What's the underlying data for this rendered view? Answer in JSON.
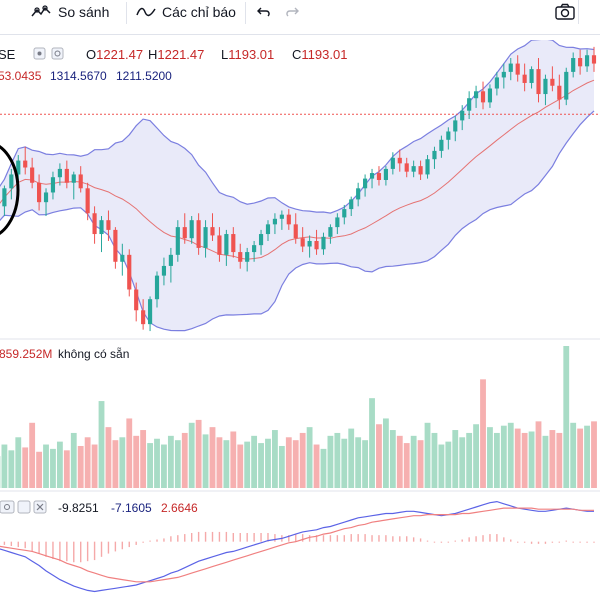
{
  "toolbar": {
    "compare_label": "So sánh",
    "indicators_label": "Các chỉ báo"
  },
  "legend": {
    "symbol_fragment": "SE",
    "o_label": "O",
    "o_value": "1221.47",
    "h_label": "H",
    "h_value": "1221.47",
    "l_label": "L",
    "l_value": "1193.01",
    "c_label": "C",
    "c_value": "1193.01",
    "bb_values": [
      "53.0435",
      "1314.5670",
      "1211.5200"
    ],
    "volume_value": "859.252M",
    "volume_na": "không có sẵn",
    "macd_values": [
      "-9.8251",
      "-7.1605",
      "2.6646"
    ]
  },
  "colors": {
    "up": "#26a69a",
    "down": "#ef5350",
    "bb_band": "#7b7fe0",
    "bb_fill": "#e4e5f7",
    "bb_basis": "#e57373",
    "macd_line": "#5b63e6",
    "signal_line": "#f08080",
    "hist": "#f5a9a9"
  },
  "chart_data": {
    "type": "candlestick",
    "price_ylim": [
      1060,
      1275
    ],
    "reference_price": 1221.47,
    "ohlc": [
      {
        "o": 1152,
        "h": 1162,
        "l": 1142,
        "c": 1155
      },
      {
        "o": 1155,
        "h": 1170,
        "l": 1148,
        "c": 1168
      },
      {
        "o": 1168,
        "h": 1182,
        "l": 1160,
        "c": 1178
      },
      {
        "o": 1178,
        "h": 1192,
        "l": 1172,
        "c": 1188
      },
      {
        "o": 1188,
        "h": 1198,
        "l": 1178,
        "c": 1183
      },
      {
        "o": 1183,
        "h": 1190,
        "l": 1168,
        "c": 1172
      },
      {
        "o": 1172,
        "h": 1178,
        "l": 1152,
        "c": 1158
      },
      {
        "o": 1158,
        "h": 1168,
        "l": 1148,
        "c": 1165
      },
      {
        "o": 1165,
        "h": 1180,
        "l": 1160,
        "c": 1176
      },
      {
        "o": 1176,
        "h": 1186,
        "l": 1170,
        "c": 1182
      },
      {
        "o": 1182,
        "h": 1188,
        "l": 1168,
        "c": 1172
      },
      {
        "o": 1172,
        "h": 1180,
        "l": 1160,
        "c": 1178
      },
      {
        "o": 1178,
        "h": 1184,
        "l": 1165,
        "c": 1168
      },
      {
        "o": 1168,
        "h": 1172,
        "l": 1145,
        "c": 1150
      },
      {
        "o": 1150,
        "h": 1155,
        "l": 1128,
        "c": 1135
      },
      {
        "o": 1135,
        "h": 1148,
        "l": 1122,
        "c": 1145
      },
      {
        "o": 1145,
        "h": 1152,
        "l": 1130,
        "c": 1138
      },
      {
        "o": 1138,
        "h": 1140,
        "l": 1110,
        "c": 1115
      },
      {
        "o": 1115,
        "h": 1128,
        "l": 1105,
        "c": 1120
      },
      {
        "o": 1120,
        "h": 1124,
        "l": 1090,
        "c": 1095
      },
      {
        "o": 1095,
        "h": 1100,
        "l": 1072,
        "c": 1080
      },
      {
        "o": 1080,
        "h": 1088,
        "l": 1066,
        "c": 1070
      },
      {
        "o": 1070,
        "h": 1090,
        "l": 1065,
        "c": 1088
      },
      {
        "o": 1088,
        "h": 1108,
        "l": 1082,
        "c": 1105
      },
      {
        "o": 1105,
        "h": 1118,
        "l": 1098,
        "c": 1112
      },
      {
        "o": 1112,
        "h": 1125,
        "l": 1100,
        "c": 1120
      },
      {
        "o": 1120,
        "h": 1145,
        "l": 1115,
        "c": 1140
      },
      {
        "o": 1140,
        "h": 1150,
        "l": 1128,
        "c": 1132
      },
      {
        "o": 1132,
        "h": 1148,
        "l": 1128,
        "c": 1145
      },
      {
        "o": 1145,
        "h": 1150,
        "l": 1120,
        "c": 1125
      },
      {
        "o": 1125,
        "h": 1145,
        "l": 1118,
        "c": 1140
      },
      {
        "o": 1140,
        "h": 1150,
        "l": 1130,
        "c": 1134
      },
      {
        "o": 1134,
        "h": 1140,
        "l": 1115,
        "c": 1120
      },
      {
        "o": 1120,
        "h": 1138,
        "l": 1112,
        "c": 1135
      },
      {
        "o": 1135,
        "h": 1140,
        "l": 1118,
        "c": 1122
      },
      {
        "o": 1122,
        "h": 1128,
        "l": 1110,
        "c": 1115
      },
      {
        "o": 1115,
        "h": 1125,
        "l": 1108,
        "c": 1122
      },
      {
        "o": 1122,
        "h": 1130,
        "l": 1115,
        "c": 1127
      },
      {
        "o": 1127,
        "h": 1138,
        "l": 1120,
        "c": 1135
      },
      {
        "o": 1135,
        "h": 1145,
        "l": 1130,
        "c": 1142
      },
      {
        "o": 1142,
        "h": 1150,
        "l": 1135,
        "c": 1146
      },
      {
        "o": 1146,
        "h": 1152,
        "l": 1138,
        "c": 1149
      },
      {
        "o": 1149,
        "h": 1153,
        "l": 1138,
        "c": 1142
      },
      {
        "o": 1142,
        "h": 1150,
        "l": 1128,
        "c": 1132
      },
      {
        "o": 1132,
        "h": 1140,
        "l": 1122,
        "c": 1126
      },
      {
        "o": 1126,
        "h": 1134,
        "l": 1118,
        "c": 1130
      },
      {
        "o": 1130,
        "h": 1138,
        "l": 1120,
        "c": 1124
      },
      {
        "o": 1124,
        "h": 1136,
        "l": 1120,
        "c": 1133
      },
      {
        "o": 1133,
        "h": 1142,
        "l": 1128,
        "c": 1140
      },
      {
        "o": 1140,
        "h": 1150,
        "l": 1135,
        "c": 1147
      },
      {
        "o": 1147,
        "h": 1156,
        "l": 1142,
        "c": 1153
      },
      {
        "o": 1153,
        "h": 1162,
        "l": 1148,
        "c": 1160
      },
      {
        "o": 1160,
        "h": 1172,
        "l": 1155,
        "c": 1168
      },
      {
        "o": 1168,
        "h": 1178,
        "l": 1162,
        "c": 1175
      },
      {
        "o": 1175,
        "h": 1182,
        "l": 1168,
        "c": 1179
      },
      {
        "o": 1179,
        "h": 1184,
        "l": 1170,
        "c": 1174
      },
      {
        "o": 1174,
        "h": 1184,
        "l": 1170,
        "c": 1182
      },
      {
        "o": 1182,
        "h": 1194,
        "l": 1178,
        "c": 1190
      },
      {
        "o": 1190,
        "h": 1196,
        "l": 1180,
        "c": 1186
      },
      {
        "o": 1186,
        "h": 1190,
        "l": 1176,
        "c": 1180
      },
      {
        "o": 1180,
        "h": 1188,
        "l": 1176,
        "c": 1184
      },
      {
        "o": 1184,
        "h": 1188,
        "l": 1174,
        "c": 1178
      },
      {
        "o": 1178,
        "h": 1192,
        "l": 1175,
        "c": 1189
      },
      {
        "o": 1189,
        "h": 1198,
        "l": 1182,
        "c": 1195
      },
      {
        "o": 1195,
        "h": 1206,
        "l": 1190,
        "c": 1203
      },
      {
        "o": 1203,
        "h": 1212,
        "l": 1196,
        "c": 1209
      },
      {
        "o": 1209,
        "h": 1220,
        "l": 1202,
        "c": 1217
      },
      {
        "o": 1217,
        "h": 1228,
        "l": 1210,
        "c": 1224
      },
      {
        "o": 1224,
        "h": 1238,
        "l": 1218,
        "c": 1233
      },
      {
        "o": 1233,
        "h": 1242,
        "l": 1226,
        "c": 1238
      },
      {
        "o": 1238,
        "h": 1245,
        "l": 1225,
        "c": 1230
      },
      {
        "o": 1230,
        "h": 1243,
        "l": 1226,
        "c": 1240
      },
      {
        "o": 1240,
        "h": 1252,
        "l": 1235,
        "c": 1248
      },
      {
        "o": 1248,
        "h": 1258,
        "l": 1240,
        "c": 1252
      },
      {
        "o": 1252,
        "h": 1262,
        "l": 1246,
        "c": 1258
      },
      {
        "o": 1258,
        "h": 1264,
        "l": 1245,
        "c": 1250
      },
      {
        "o": 1250,
        "h": 1258,
        "l": 1238,
        "c": 1244
      },
      {
        "o": 1244,
        "h": 1256,
        "l": 1240,
        "c": 1254
      },
      {
        "o": 1254,
        "h": 1262,
        "l": 1230,
        "c": 1236
      },
      {
        "o": 1236,
        "h": 1250,
        "l": 1228,
        "c": 1247
      },
      {
        "o": 1247,
        "h": 1256,
        "l": 1238,
        "c": 1242
      },
      {
        "o": 1242,
        "h": 1250,
        "l": 1225,
        "c": 1232
      },
      {
        "o": 1232,
        "h": 1255,
        "l": 1228,
        "c": 1252
      },
      {
        "o": 1252,
        "h": 1266,
        "l": 1248,
        "c": 1262
      },
      {
        "o": 1262,
        "h": 1268,
        "l": 1250,
        "c": 1256
      },
      {
        "o": 1256,
        "h": 1268,
        "l": 1252,
        "c": 1264
      },
      {
        "o": 1264,
        "h": 1270,
        "l": 1252,
        "c": 1258
      }
    ],
    "volume": [
      22,
      30,
      26,
      35,
      28,
      45,
      25,
      30,
      27,
      32,
      26,
      38,
      29,
      35,
      30,
      60,
      42,
      33,
      35,
      48,
      36,
      40,
      31,
      34,
      30,
      36,
      33,
      38,
      45,
      47,
      37,
      42,
      35,
      33,
      39,
      30,
      32,
      36,
      31,
      34,
      40,
      29,
      35,
      33,
      38,
      42,
      30,
      27,
      36,
      38,
      34,
      41,
      35,
      33,
      62,
      44,
      48,
      40,
      36,
      31,
      36,
      33,
      45,
      38,
      30,
      32,
      40,
      35,
      38,
      44,
      75,
      42,
      38,
      43,
      45,
      41,
      38,
      39,
      46,
      36,
      40,
      38,
      98,
      45,
      41,
      43,
      46
    ],
    "macd": [
      -6,
      -8,
      -10,
      -12,
      -14,
      -18,
      -22,
      -27,
      -31,
      -35,
      -38,
      -41,
      -43,
      -45,
      -46,
      -45,
      -44,
      -43,
      -42,
      -41,
      -40,
      -38,
      -36,
      -34,
      -32,
      -29,
      -27,
      -24,
      -21,
      -18,
      -16,
      -14,
      -12,
      -10,
      -9,
      -7,
      -5,
      -3,
      -1,
      1,
      2,
      3,
      5,
      7,
      9,
      10,
      11,
      13,
      14,
      16,
      18,
      20,
      22,
      23,
      24,
      25,
      26,
      26,
      27,
      28,
      28,
      27,
      26,
      25,
      24,
      25,
      26,
      28,
      30,
      32,
      34,
      36,
      37,
      35,
      33,
      31,
      30,
      29,
      28,
      28,
      29,
      30,
      31,
      30,
      29,
      28,
      28
    ],
    "signal": [
      -4,
      -5,
      -6,
      -7,
      -8,
      -9,
      -11,
      -13,
      -15,
      -17,
      -20,
      -22,
      -24,
      -27,
      -29,
      -31,
      -33,
      -34,
      -35,
      -36,
      -37,
      -37,
      -37,
      -36,
      -35,
      -34,
      -33,
      -31,
      -29,
      -27,
      -25,
      -23,
      -21,
      -19,
      -17,
      -15,
      -13,
      -11,
      -9,
      -7,
      -5,
      -3,
      -1,
      0,
      2,
      4,
      5,
      7,
      8,
      10,
      12,
      13,
      15,
      16,
      18,
      19,
      20,
      21,
      22,
      23,
      24,
      24,
      25,
      25,
      25,
      25,
      25,
      26,
      26,
      27,
      28,
      29,
      30,
      31,
      31,
      31,
      31,
      31,
      30,
      30,
      30,
      30,
      30,
      30,
      29,
      29,
      29
    ],
    "macd_ylim": [
      -52,
      44
    ]
  }
}
